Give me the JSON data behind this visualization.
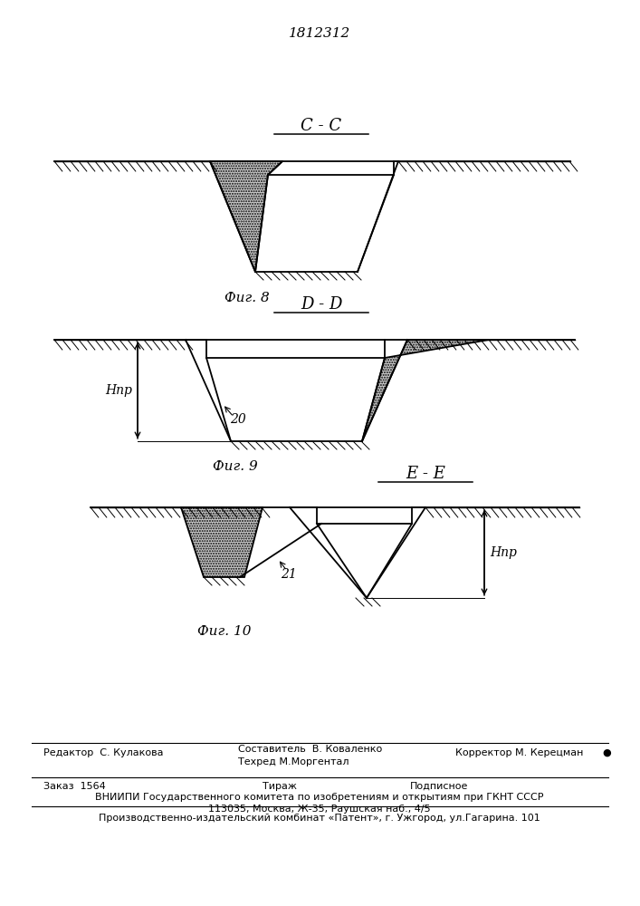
{
  "patent_number": "1812312",
  "fig8_label": "С - С",
  "fig8_caption": "Фиг. 8",
  "fig9_label": "D - D",
  "fig9_caption": "Фиг. 9",
  "fig10_label": "E - E",
  "fig10_caption": "Фиг. 10",
  "label_20": "20",
  "label_21": "21",
  "label_Hnp": "Нпр",
  "line_color": "#000000",
  "bg_color": "#ffffff",
  "ore_color": "#cccccc",
  "footer_col1_row1": "Редактор  С. Кулакова",
  "footer_col2_row1a": "Составитель  В. Коваленко",
  "footer_col2_row1b": "Техред М.Моргентал",
  "footer_col3_row1": "Корректор М. Керецман",
  "footer_col1_row2": "Заказ  1564",
  "footer_col2_row2": "Тираж",
  "footer_col3_row2": "Подписное",
  "footer_line_vnipi": "ВНИИПИ Государственного комитета по изобретениям и открытиям при ГКНТ СССР",
  "footer_line_addr": "113035, Москва, Ж-35, Раушская наб., 4/5",
  "footer_line_patent": "Производственно-издательский комбинат «Патент», г. Ужгород, ул.Гагарина. 101"
}
